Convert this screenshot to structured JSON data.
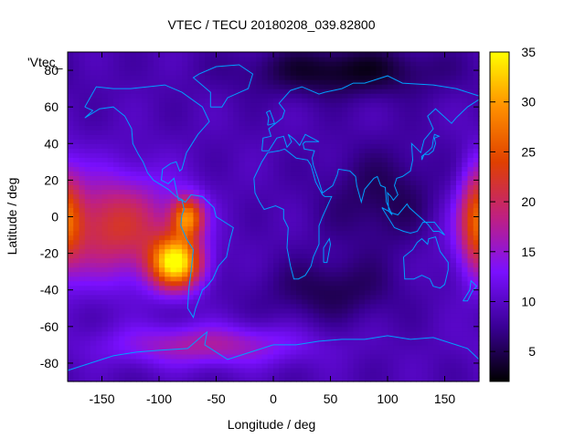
{
  "chart_data": {
    "type": "heatmap",
    "title": "VTEC / TECU 20180208_039.82800",
    "xlabel": "Longitude / deg",
    "ylabel": "Latitude / deg",
    "key_label": "'Vtec_",
    "xlim": [
      -180,
      180
    ],
    "ylim": [
      -90,
      90
    ],
    "xticks": [
      -150,
      -100,
      -50,
      0,
      50,
      100,
      150
    ],
    "yticks": [
      -80,
      -60,
      -40,
      -20,
      0,
      20,
      40,
      60,
      80
    ],
    "colorbar": {
      "range": [
        2,
        35
      ],
      "ticks": [
        5,
        10,
        15,
        20,
        25,
        30,
        35
      ]
    },
    "grid": false,
    "colormap": [
      "#000000",
      "#3a0096",
      "#7a10ff",
      "#c02080",
      "#e04000",
      "#ff9000",
      "#ffff00"
    ],
    "coastline_color": "#00a0ff",
    "features": [
      {
        "name": "background",
        "lon": 0,
        "lat": 0,
        "value": 9
      },
      {
        "name": "south-american-anomaly-peak",
        "lon": -85,
        "lat": -25,
        "value": 33
      },
      {
        "name": "equatorial-pacific-band",
        "lon": -140,
        "lat": -5,
        "value": 22
      },
      {
        "name": "andes-crest-north",
        "lon": -75,
        "lat": 0,
        "value": 26
      },
      {
        "name": "southern-ocean-band",
        "lon": -60,
        "lat": -70,
        "value": 17
      },
      {
        "name": "western-pacific-edge",
        "lon": 178,
        "lat": 0,
        "value": 20
      },
      {
        "name": "arctic-low",
        "lon": 60,
        "lat": 80,
        "value": 3
      },
      {
        "name": "asia-low",
        "lon": 100,
        "lat": 10,
        "value": 5
      },
      {
        "name": "southern-indian-low",
        "lon": 50,
        "lat": -40,
        "value": 5
      }
    ]
  }
}
